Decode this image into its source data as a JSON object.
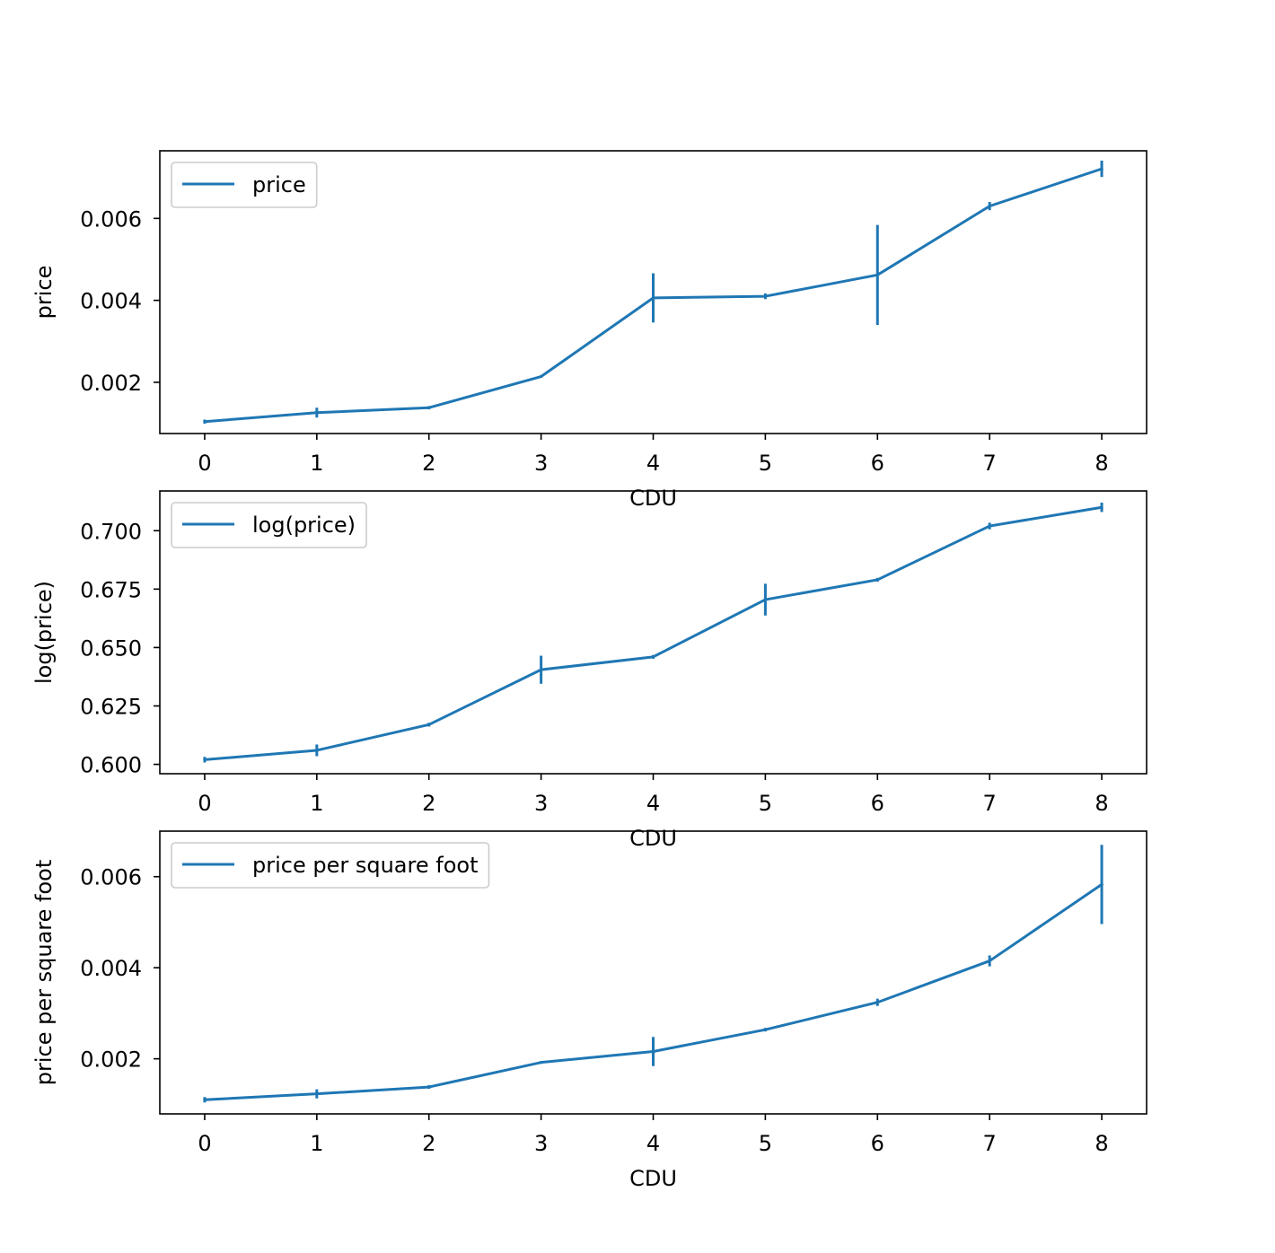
{
  "chart_data": [
    {
      "type": "line",
      "title": "",
      "xlabel": "CDU",
      "ylabel": "price",
      "x": [
        0,
        1,
        2,
        3,
        4,
        5,
        6,
        7,
        8
      ],
      "xlim": [
        -0.4,
        8.4
      ],
      "ylim": [
        0.00075,
        0.00765
      ],
      "xticks": [
        0,
        1,
        2,
        3,
        4,
        5,
        6,
        7,
        8
      ],
      "yticks": [
        0.002,
        0.004,
        0.006
      ],
      "ytick_labels": [
        "0.002",
        "0.004",
        "0.006"
      ],
      "grid": false,
      "legend_position": "upper-left",
      "series": [
        {
          "name": "price",
          "color": "#1f77b4",
          "values": [
            0.00104,
            0.00126,
            0.00138,
            0.00214,
            0.00406,
            0.0041,
            0.00462,
            0.0063,
            0.00721
          ],
          "error": [
            5e-05,
            0.00012,
            4e-05,
            3e-05,
            0.0006,
            7e-05,
            0.00122,
            0.0001,
            0.0002
          ]
        }
      ]
    },
    {
      "type": "line",
      "title": "",
      "xlabel": "CDU",
      "ylabel": "log(price)",
      "x": [
        0,
        1,
        2,
        3,
        4,
        5,
        6,
        7,
        8
      ],
      "xlim": [
        -0.4,
        8.4
      ],
      "ylim": [
        0.596,
        0.717
      ],
      "xticks": [
        0,
        1,
        2,
        3,
        4,
        5,
        6,
        7,
        8
      ],
      "yticks": [
        0.6,
        0.625,
        0.65,
        0.675,
        0.7
      ],
      "ytick_labels": [
        "0.600",
        "0.625",
        "0.650",
        "0.675",
        "0.700"
      ],
      "grid": false,
      "legend_position": "upper-left",
      "series": [
        {
          "name": "log(price)",
          "color": "#1f77b4",
          "values": [
            0.602,
            0.606,
            0.617,
            0.6405,
            0.646,
            0.6705,
            0.679,
            0.702,
            0.71
          ],
          "error": [
            0.0012,
            0.0025,
            0.0008,
            0.006,
            0.0008,
            0.0068,
            0.0008,
            0.0014,
            0.002
          ]
        }
      ]
    },
    {
      "type": "line",
      "title": "",
      "xlabel": "CDU",
      "ylabel": "price per square foot",
      "x": [
        0,
        1,
        2,
        3,
        4,
        5,
        6,
        7,
        8
      ],
      "xlim": [
        -0.4,
        8.4
      ],
      "ylim": [
        0.00079,
        0.007
      ],
      "xticks": [
        0,
        1,
        2,
        3,
        4,
        5,
        6,
        7,
        8
      ],
      "yticks": [
        0.002,
        0.004,
        0.006
      ],
      "ytick_labels": [
        "0.002",
        "0.004",
        "0.006"
      ],
      "grid": false,
      "legend_position": "upper-left",
      "series": [
        {
          "name": "price per square foot",
          "color": "#1f77b4",
          "values": [
            0.0011,
            0.00123,
            0.00138,
            0.00192,
            0.00216,
            0.00264,
            0.00324,
            0.00415,
            0.00583
          ],
          "error": [
            6e-05,
            0.0001,
            4e-05,
            3e-05,
            0.00032,
            4e-05,
            8e-05,
            0.00012,
            0.00087
          ]
        }
      ]
    }
  ]
}
